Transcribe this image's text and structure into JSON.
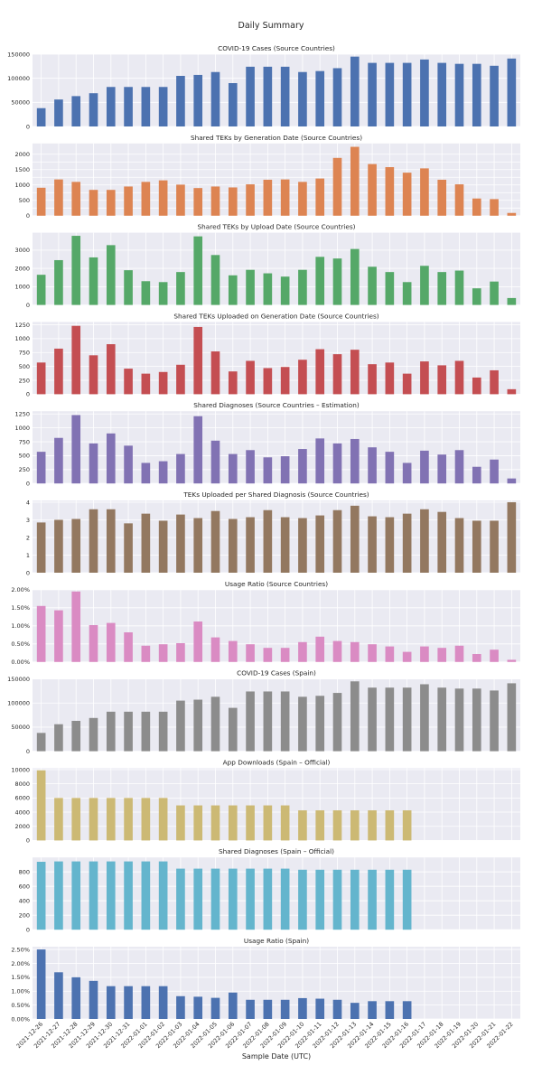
{
  "figure": {
    "title": "Daily Summary",
    "xlabel": "Sample Date (UTC)"
  },
  "chart_data": [
    {
      "type": "bar",
      "title": "COVID-19 Cases (Source Countries)",
      "color": "#4c72b0",
      "categories": [
        "2021-12-26",
        "2021-12-27",
        "2021-12-28",
        "2021-12-29",
        "2021-12-30",
        "2021-12-31",
        "2022-01-01",
        "2022-01-02",
        "2022-01-03",
        "2022-01-04",
        "2022-01-05",
        "2022-01-06",
        "2022-01-07",
        "2022-01-08",
        "2022-01-09",
        "2022-01-10",
        "2022-01-11",
        "2022-01-12",
        "2022-01-13",
        "2022-01-14",
        "2022-01-15",
        "2022-01-16",
        "2022-01-17",
        "2022-01-18",
        "2022-01-19",
        "2022-01-20",
        "2022-01-21",
        "2022-01-22"
      ],
      "values": [
        38000,
        56000,
        63000,
        69000,
        82000,
        82000,
        82000,
        82000,
        105000,
        107000,
        113000,
        90000,
        124000,
        124000,
        124000,
        113000,
        115000,
        121000,
        145000,
        132000,
        132000,
        132000,
        139000,
        132000,
        130000,
        130000,
        126000,
        141000
      ],
      "ylim": [
        0,
        150000
      ],
      "yticks": [
        0,
        50000,
        100000,
        150000
      ],
      "ytick_labels": [
        "0",
        "50000",
        "100000",
        "150000"
      ]
    },
    {
      "type": "bar",
      "title": "Shared TEKs by Generation Date (Source Countries)",
      "color": "#dd8452",
      "values": [
        910,
        1180,
        1100,
        840,
        840,
        950,
        1100,
        1150,
        1010,
        900,
        950,
        920,
        1020,
        1170,
        1180,
        1100,
        1210,
        1880,
        2240,
        1680,
        1580,
        1400,
        1540,
        1170,
        1020,
        560,
        540,
        90
      ],
      "ylim": [
        0,
        2350
      ],
      "yticks": [
        0,
        250,
        500,
        750,
        1000,
        1250,
        1500,
        1750,
        2000
      ],
      "ytick_labels": [
        "0",
        "500",
        "1000",
        "1500",
        "2000"
      ],
      "ytick_label_values": [
        0,
        500,
        1000,
        1500,
        2000
      ]
    },
    {
      "type": "bar",
      "title": "Shared TEKs by Upload Date (Source Countries)",
      "color": "#55a868",
      "values": [
        1650,
        2450,
        3780,
        2600,
        3270,
        1900,
        1300,
        1250,
        1800,
        3750,
        2730,
        1620,
        1920,
        1730,
        1550,
        1920,
        2630,
        2540,
        3060,
        2090,
        1800,
        1250,
        2140,
        1800,
        1880,
        910,
        1280,
        380
      ],
      "ylim": [
        0,
        3950
      ],
      "yticks": [
        0,
        1000,
        2000,
        3000
      ],
      "ytick_labels": [
        "0",
        "1000",
        "2000",
        "3000"
      ]
    },
    {
      "type": "bar",
      "title": "Shared TEKs Uploaded on Generation Date (Source Countries)",
      "color": "#c44e52",
      "values": [
        570,
        820,
        1230,
        700,
        900,
        460,
        370,
        400,
        530,
        1210,
        770,
        410,
        600,
        470,
        490,
        620,
        810,
        720,
        800,
        540,
        570,
        370,
        590,
        520,
        600,
        300,
        430,
        90
      ],
      "ylim": [
        0,
        1300
      ],
      "yticks": [
        0,
        250,
        500,
        750,
        1000,
        1250
      ],
      "ytick_labels": [
        "0",
        "250",
        "500",
        "750",
        "1000",
        "1250"
      ]
    },
    {
      "type": "bar",
      "title": "Shared Diagnoses (Source Countries – Estimation)",
      "color": "#8172b3",
      "values": [
        570,
        820,
        1230,
        720,
        900,
        680,
        370,
        400,
        530,
        1210,
        770,
        530,
        600,
        470,
        490,
        620,
        810,
        720,
        800,
        650,
        570,
        370,
        590,
        520,
        600,
        300,
        430,
        90
      ],
      "ylim": [
        0,
        1300
      ],
      "yticks": [
        0,
        250,
        500,
        750,
        1000,
        1250
      ],
      "ytick_labels": [
        "0",
        "250",
        "500",
        "750",
        "1000",
        "1250"
      ]
    },
    {
      "type": "bar",
      "title": "TEKs Uploaded per Shared Diagnosis (Source Countries)",
      "color": "#937860",
      "values": [
        2.85,
        3.0,
        3.05,
        3.6,
        3.6,
        2.8,
        3.35,
        2.95,
        3.3,
        3.1,
        3.5,
        3.05,
        3.15,
        3.55,
        3.15,
        3.1,
        3.25,
        3.55,
        3.8,
        3.2,
        3.15,
        3.35,
        3.6,
        3.45,
        3.1,
        2.95,
        2.95,
        4.0
      ],
      "ylim": [
        0,
        4.1
      ],
      "yticks": [
        0,
        1,
        2,
        3,
        4
      ],
      "ytick_labels": [
        "0",
        "1",
        "2",
        "3",
        "4"
      ]
    },
    {
      "type": "bar",
      "title": "Usage Ratio (Source Countries)",
      "color": "#da8bc3",
      "values": [
        0.0155,
        0.0143,
        0.0195,
        0.0102,
        0.0108,
        0.0082,
        0.0045,
        0.0049,
        0.0052,
        0.0112,
        0.0068,
        0.0058,
        0.0049,
        0.0039,
        0.0039,
        0.0055,
        0.007,
        0.0058,
        0.0055,
        0.0049,
        0.0043,
        0.0028,
        0.0043,
        0.0039,
        0.0045,
        0.0022,
        0.0034,
        0.0006
      ],
      "ylim": [
        0,
        0.02
      ],
      "yticks": [
        0,
        0.005,
        0.01,
        0.015,
        0.02
      ],
      "ytick_labels": [
        "0.00%",
        "0.50%",
        "1.00%",
        "1.50%",
        "2.00%"
      ]
    },
    {
      "type": "bar",
      "title": "COVID-19 Cases (Spain)",
      "color": "#8c8c8c",
      "values": [
        38000,
        56000,
        63000,
        69000,
        82000,
        82000,
        82000,
        82000,
        105000,
        107000,
        113000,
        90000,
        124000,
        124000,
        124000,
        113000,
        115000,
        121000,
        145000,
        132000,
        132000,
        132000,
        139000,
        132000,
        130000,
        130000,
        126000,
        141000
      ],
      "ylim": [
        0,
        150000
      ],
      "yticks": [
        0,
        50000,
        100000,
        150000
      ],
      "ytick_labels": [
        "0",
        "50000",
        "100000",
        "150000"
      ]
    },
    {
      "type": "bar",
      "title": "App Downloads (Spain – Official)",
      "color": "#ccb974",
      "values": [
        9900,
        6000,
        6000,
        6000,
        6000,
        6000,
        6000,
        6000,
        4950,
        4950,
        4950,
        4950,
        4950,
        4950,
        4950,
        4250,
        4250,
        4250,
        4250,
        4250,
        4250,
        4250,
        null,
        null,
        null,
        null,
        null,
        null
      ],
      "ylim": [
        0,
        10200
      ],
      "yticks": [
        0,
        2000,
        4000,
        6000,
        8000,
        10000
      ],
      "ytick_labels": [
        "0",
        "2000",
        "4000",
        "6000",
        "8000",
        "10000"
      ]
    },
    {
      "type": "bar",
      "title": "Shared Diagnoses (Spain – Official)",
      "color": "#64b5cd",
      "values": [
        940,
        945,
        945,
        945,
        945,
        945,
        945,
        945,
        845,
        845,
        845,
        845,
        845,
        845,
        845,
        830,
        830,
        830,
        830,
        830,
        830,
        830,
        null,
        null,
        null,
        null,
        null,
        null
      ],
      "ylim": [
        0,
        1000
      ],
      "yticks": [
        0,
        200,
        400,
        600,
        800
      ],
      "ytick_labels": [
        "0",
        "200",
        "400",
        "600",
        "800"
      ]
    },
    {
      "type": "bar",
      "title": "Usage Ratio (Spain)",
      "color": "#4c72b0",
      "values": [
        0.025,
        0.0168,
        0.015,
        0.0137,
        0.0118,
        0.0118,
        0.0118,
        0.0118,
        0.0082,
        0.008,
        0.0076,
        0.0095,
        0.0069,
        0.0069,
        0.0069,
        0.0075,
        0.0073,
        0.0069,
        0.0058,
        0.0064,
        0.0064,
        0.0064,
        null,
        null,
        null,
        null,
        null,
        null
      ],
      "ylim": [
        0,
        0.026
      ],
      "yticks": [
        0,
        0.005,
        0.01,
        0.015,
        0.02,
        0.025
      ],
      "ytick_labels": [
        "0.00%",
        "0.50%",
        "1.00%",
        "1.50%",
        "2.00%",
        "2.50%"
      ]
    }
  ]
}
